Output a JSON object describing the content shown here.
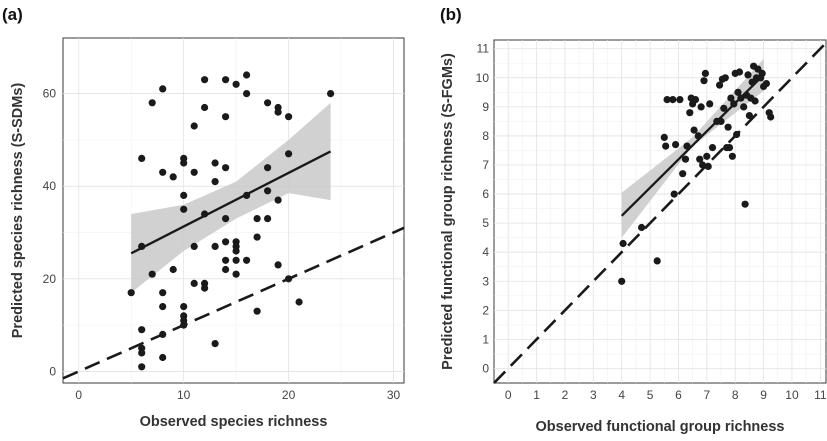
{
  "chart_data": [
    {
      "panel": "(a)",
      "type": "scatter",
      "xlabel": "Observed species richness",
      "ylabel": "Predicted species richness (S-SDMs)",
      "xlim": [
        -1.5,
        31
      ],
      "ylim": [
        -2.5,
        72
      ],
      "xticks": [
        0,
        10,
        20,
        30
      ],
      "yticks": [
        0,
        20,
        40,
        60
      ],
      "grid": true,
      "series": [
        {
          "kind": "points",
          "values": [
            [
              5,
              17
            ],
            [
              6,
              27
            ],
            [
              6,
              46
            ],
            [
              6,
              9
            ],
            [
              6,
              5
            ],
            [
              6,
              4
            ],
            [
              6,
              1
            ],
            [
              7,
              58
            ],
            [
              7,
              21
            ],
            [
              8,
              61
            ],
            [
              8,
              43
            ],
            [
              8,
              17
            ],
            [
              8,
              14
            ],
            [
              8,
              8
            ],
            [
              8,
              3
            ],
            [
              9,
              42
            ],
            [
              9,
              22
            ],
            [
              10,
              46
            ],
            [
              10,
              45
            ],
            [
              10,
              38
            ],
            [
              10,
              35
            ],
            [
              10,
              14
            ],
            [
              10,
              12
            ],
            [
              10,
              11
            ],
            [
              10,
              10
            ],
            [
              11,
              53
            ],
            [
              11,
              43
            ],
            [
              11,
              27
            ],
            [
              11,
              19
            ],
            [
              12,
              63
            ],
            [
              12,
              57
            ],
            [
              12,
              34
            ],
            [
              12,
              19
            ],
            [
              12,
              18
            ],
            [
              13,
              45
            ],
            [
              13,
              41
            ],
            [
              13,
              27
            ],
            [
              13,
              6
            ],
            [
              14,
              63
            ],
            [
              14,
              55
            ],
            [
              14,
              44
            ],
            [
              14,
              33
            ],
            [
              14,
              28
            ],
            [
              14,
              24
            ],
            [
              14,
              22
            ],
            [
              15,
              62
            ],
            [
              15,
              28
            ],
            [
              15,
              27
            ],
            [
              15,
              26
            ],
            [
              15,
              24
            ],
            [
              15,
              21
            ],
            [
              16,
              64
            ],
            [
              16,
              60
            ],
            [
              16,
              38
            ],
            [
              16,
              24
            ],
            [
              17,
              33
            ],
            [
              17,
              29
            ],
            [
              17,
              13
            ],
            [
              18,
              58
            ],
            [
              18,
              44
            ],
            [
              18,
              39
            ],
            [
              18,
              33
            ],
            [
              19,
              57
            ],
            [
              19,
              56
            ],
            [
              19,
              37
            ],
            [
              19,
              23
            ],
            [
              20,
              55
            ],
            [
              20,
              47
            ],
            [
              20,
              20
            ],
            [
              21,
              15
            ],
            [
              24,
              60
            ]
          ]
        },
        {
          "kind": "fit",
          "x": [
            5,
            24
          ],
          "y": [
            25.5,
            47.5
          ]
        },
        {
          "kind": "confidence-band",
          "x": [
            5,
            10,
            15,
            20,
            24
          ],
          "lower": [
            17,
            26,
            33,
            38.5,
            37
          ],
          "upper": [
            34,
            36,
            41,
            50,
            58
          ]
        },
        {
          "kind": "one-to-one-line",
          "x": [
            -1.5,
            31
          ],
          "y": [
            -1.5,
            31
          ]
        }
      ]
    },
    {
      "panel": "(b)",
      "type": "scatter",
      "xlabel": "Observed functional group richness",
      "ylabel": "Predicted functional group richness (S-FGMs)",
      "xlim": [
        -0.5,
        11.2
      ],
      "ylim": [
        -0.5,
        11.3
      ],
      "xticks": [
        0,
        1,
        2,
        3,
        4,
        5,
        6,
        7,
        8,
        9,
        10,
        11
      ],
      "yticks": [
        0,
        1,
        2,
        3,
        4,
        5,
        6,
        7,
        8,
        9,
        10,
        11
      ],
      "grid": true,
      "series": [
        {
          "kind": "points",
          "values": [
            [
              4.0,
              3.0
            ],
            [
              4.05,
              4.3
            ],
            [
              4.7,
              4.85
            ],
            [
              5.25,
              3.7
            ],
            [
              5.5,
              7.95
            ],
            [
              5.55,
              7.65
            ],
            [
              5.6,
              9.25
            ],
            [
              5.8,
              9.25
            ],
            [
              5.85,
              6.0
            ],
            [
              5.9,
              7.7
            ],
            [
              6.05,
              9.25
            ],
            [
              6.15,
              6.7
            ],
            [
              6.25,
              7.2
            ],
            [
              6.3,
              7.65
            ],
            [
              6.4,
              8.8
            ],
            [
              6.45,
              9.3
            ],
            [
              6.5,
              9.1
            ],
            [
              6.55,
              8.2
            ],
            [
              6.6,
              9.25
            ],
            [
              6.7,
              8.0
            ],
            [
              6.75,
              7.2
            ],
            [
              6.8,
              9.0
            ],
            [
              6.85,
              7.0
            ],
            [
              6.9,
              9.9
            ],
            [
              6.95,
              10.15
            ],
            [
              7.0,
              7.3
            ],
            [
              7.05,
              6.95
            ],
            [
              7.1,
              9.1
            ],
            [
              7.2,
              7.6
            ],
            [
              7.35,
              8.5
            ],
            [
              7.45,
              9.75
            ],
            [
              7.5,
              8.5
            ],
            [
              7.55,
              9.95
            ],
            [
              7.6,
              8.95
            ],
            [
              7.65,
              10.0
            ],
            [
              7.7,
              7.6
            ],
            [
              7.75,
              8.3
            ],
            [
              7.8,
              7.6
            ],
            [
              7.85,
              9.3
            ],
            [
              7.9,
              7.3
            ],
            [
              7.95,
              9.1
            ],
            [
              8.0,
              10.15
            ],
            [
              8.05,
              8.05
            ],
            [
              8.1,
              9.5
            ],
            [
              8.15,
              10.2
            ],
            [
              8.2,
              9.3
            ],
            [
              8.3,
              9.0
            ],
            [
              8.35,
              5.65
            ],
            [
              8.4,
              9.4
            ],
            [
              8.45,
              10.1
            ],
            [
              8.5,
              8.7
            ],
            [
              8.55,
              9.3
            ],
            [
              8.6,
              9.85
            ],
            [
              8.65,
              10.4
            ],
            [
              8.7,
              9.2
            ],
            [
              8.75,
              10.0
            ],
            [
              8.8,
              10.3
            ],
            [
              8.9,
              10.0
            ],
            [
              8.95,
              10.15
            ],
            [
              9.0,
              9.7
            ],
            [
              9.1,
              9.8
            ],
            [
              9.2,
              8.8
            ],
            [
              9.25,
              8.65
            ]
          ]
        },
        {
          "kind": "fit",
          "x": [
            4,
            9
          ],
          "y": [
            5.25,
            10.1
          ]
        },
        {
          "kind": "confidence-band",
          "x": [
            4,
            6.5,
            9
          ],
          "lower": [
            4.5,
            7.65,
            9.55
          ],
          "upper": [
            6.05,
            7.95,
            10.65
          ]
        },
        {
          "kind": "one-to-one-line",
          "x": [
            -0.5,
            11.3
          ],
          "y": [
            -0.5,
            11.3
          ]
        }
      ]
    }
  ]
}
